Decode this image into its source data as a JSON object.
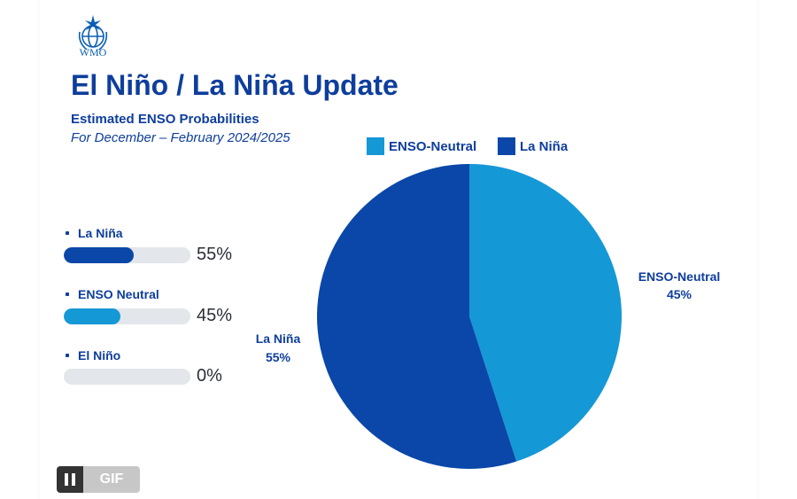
{
  "logo": {
    "text": "WMO"
  },
  "title": "El Niño / La Niña Update",
  "subtitle": "Estimated ENSO Probabilities",
  "period": "For December – February 2024/2025",
  "colors": {
    "la_nina": "#0a47a8",
    "enso_neutral": "#1598d6",
    "el_nino": "#e3e6ea",
    "text": "#0e3e9c"
  },
  "probability_bars": [
    {
      "label": "La Niña",
      "value": 55,
      "value_text": "55%"
    },
    {
      "label": "ENSO Neutral",
      "value": 45,
      "value_text": "45%"
    },
    {
      "label": "El Niño",
      "value": 0,
      "value_text": "0%"
    }
  ],
  "chart_data": {
    "type": "pie",
    "title": "",
    "legend_position": "top",
    "legend": [
      "ENSO-Neutral",
      "La Niña"
    ],
    "slices": [
      {
        "name": "ENSO-Neutral",
        "value": 45,
        "label": "ENSO-Neutral",
        "value_label": "45%",
        "color": "#1598d6"
      },
      {
        "name": "La Niña",
        "value": 55,
        "label": "La Niña",
        "value_label": "55%",
        "color": "#0a47a8"
      }
    ]
  },
  "gif_control": {
    "label": "GIF",
    "icon": "pause-icon"
  }
}
